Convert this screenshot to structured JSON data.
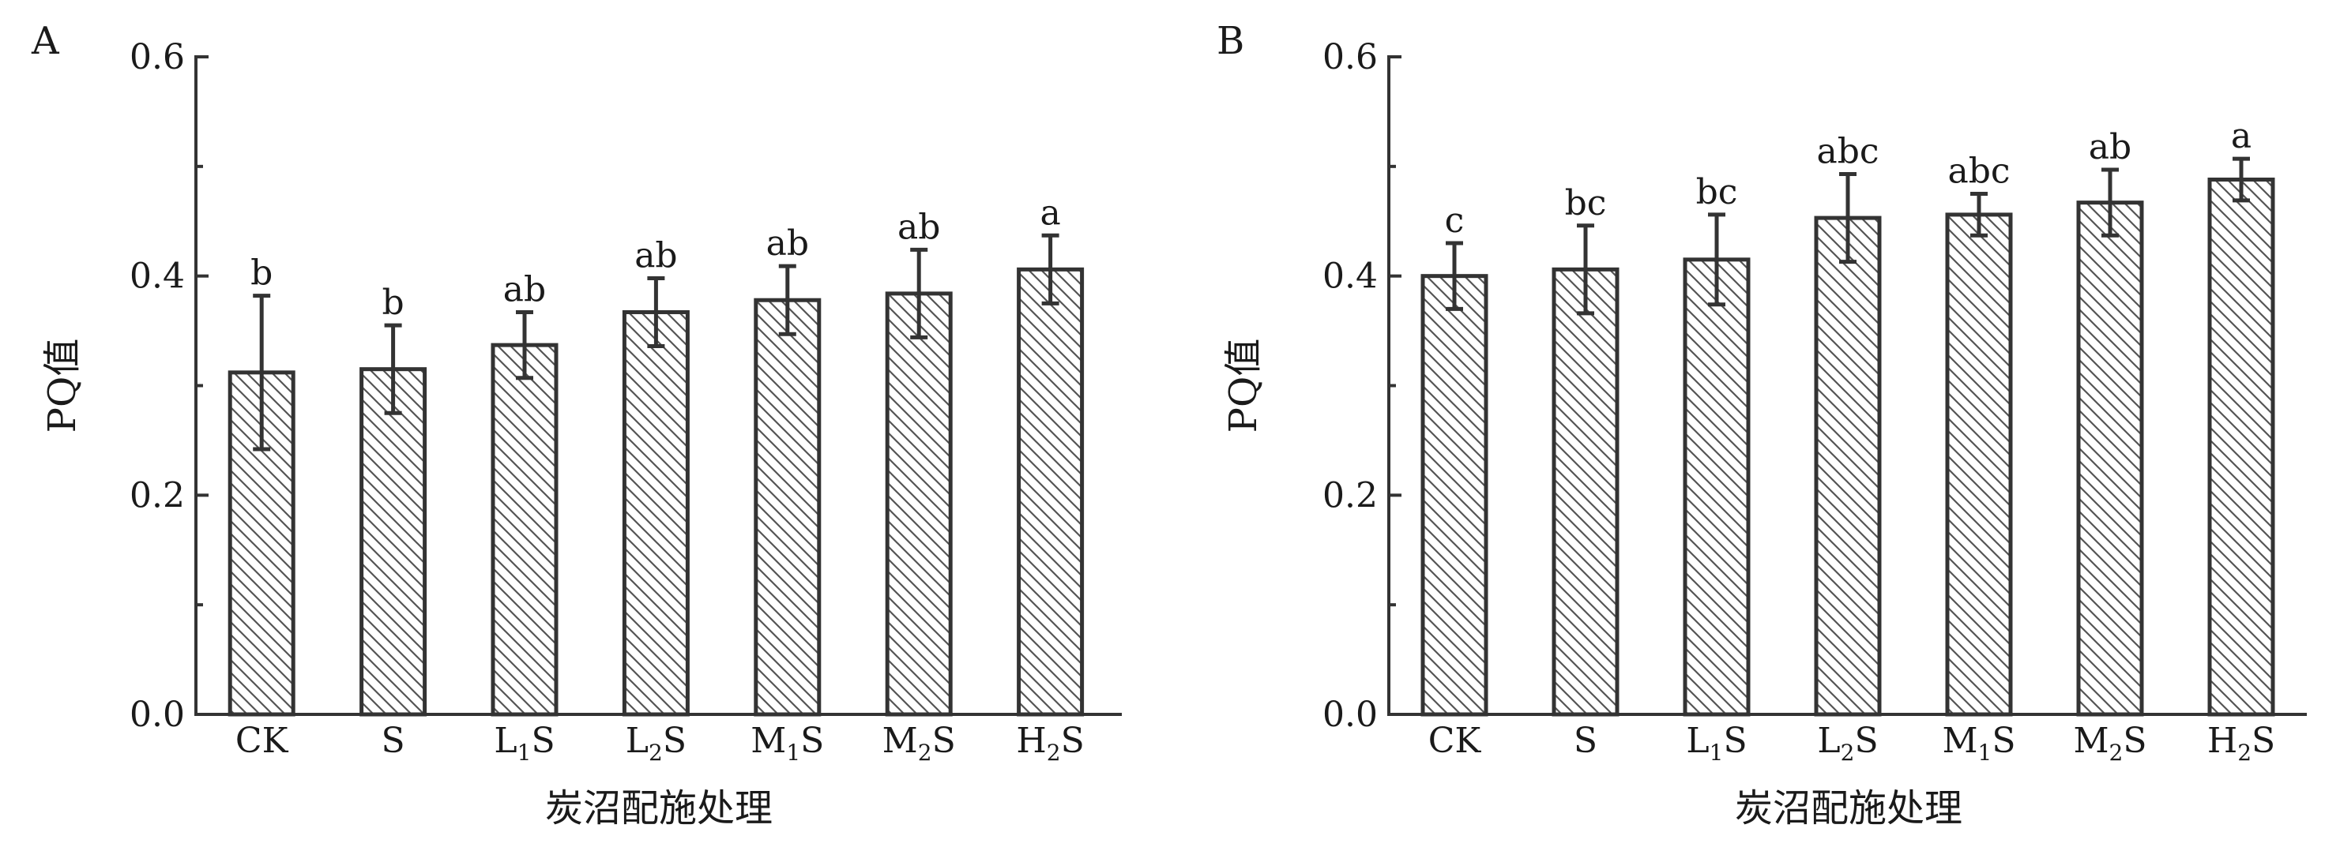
{
  "chart_data": [
    {
      "type": "bar",
      "panel_label": "A",
      "categories": [
        {
          "base": "CK",
          "sub": "",
          "rest": ""
        },
        {
          "base": "S",
          "sub": "",
          "rest": ""
        },
        {
          "base": "L",
          "sub": "1",
          "rest": "S"
        },
        {
          "base": "L",
          "sub": "2",
          "rest": "S"
        },
        {
          "base": "M",
          "sub": "1",
          "rest": "S"
        },
        {
          "base": "M",
          "sub": "2",
          "rest": "S"
        },
        {
          "base": "H",
          "sub": "2",
          "rest": "S"
        }
      ],
      "values": [
        0.312,
        0.315,
        0.337,
        0.367,
        0.378,
        0.384,
        0.406
      ],
      "errors": [
        0.07,
        0.04,
        0.03,
        0.031,
        0.031,
        0.04,
        0.031
      ],
      "significance": [
        "b",
        "b",
        "ab",
        "ab",
        "ab",
        "ab",
        "a"
      ],
      "xlabel": "炭沼配施处理",
      "ylabel": "PQ值",
      "ylim": [
        0,
        0.6
      ],
      "yticks": [
        "0.0",
        "0.2",
        "0.4",
        "0.6"
      ],
      "fill": "hatched",
      "colors": {
        "bar_stroke": "#333333",
        "hatch": "#555555",
        "text": "#1a1a1a"
      }
    },
    {
      "type": "bar",
      "panel_label": "B",
      "categories": [
        {
          "base": "CK",
          "sub": "",
          "rest": ""
        },
        {
          "base": "S",
          "sub": "",
          "rest": ""
        },
        {
          "base": "L",
          "sub": "1",
          "rest": "S"
        },
        {
          "base": "L",
          "sub": "2",
          "rest": "S"
        },
        {
          "base": "M",
          "sub": "1",
          "rest": "S"
        },
        {
          "base": "M",
          "sub": "2",
          "rest": "S"
        },
        {
          "base": "H",
          "sub": "2",
          "rest": "S"
        }
      ],
      "values": [
        0.4,
        0.406,
        0.415,
        0.453,
        0.456,
        0.467,
        0.488
      ],
      "errors": [
        0.03,
        0.04,
        0.041,
        0.04,
        0.019,
        0.03,
        0.019
      ],
      "significance": [
        "c",
        "bc",
        "bc",
        "abc",
        "abc",
        "ab",
        "a"
      ],
      "xlabel": "炭沼配施处理",
      "ylabel": "PQ值",
      "ylim": [
        0,
        0.6
      ],
      "yticks": [
        "0.0",
        "0.2",
        "0.4",
        "0.6"
      ],
      "fill": "hatched",
      "colors": {
        "bar_stroke": "#333333",
        "hatch": "#555555",
        "text": "#1a1a1a"
      }
    }
  ]
}
